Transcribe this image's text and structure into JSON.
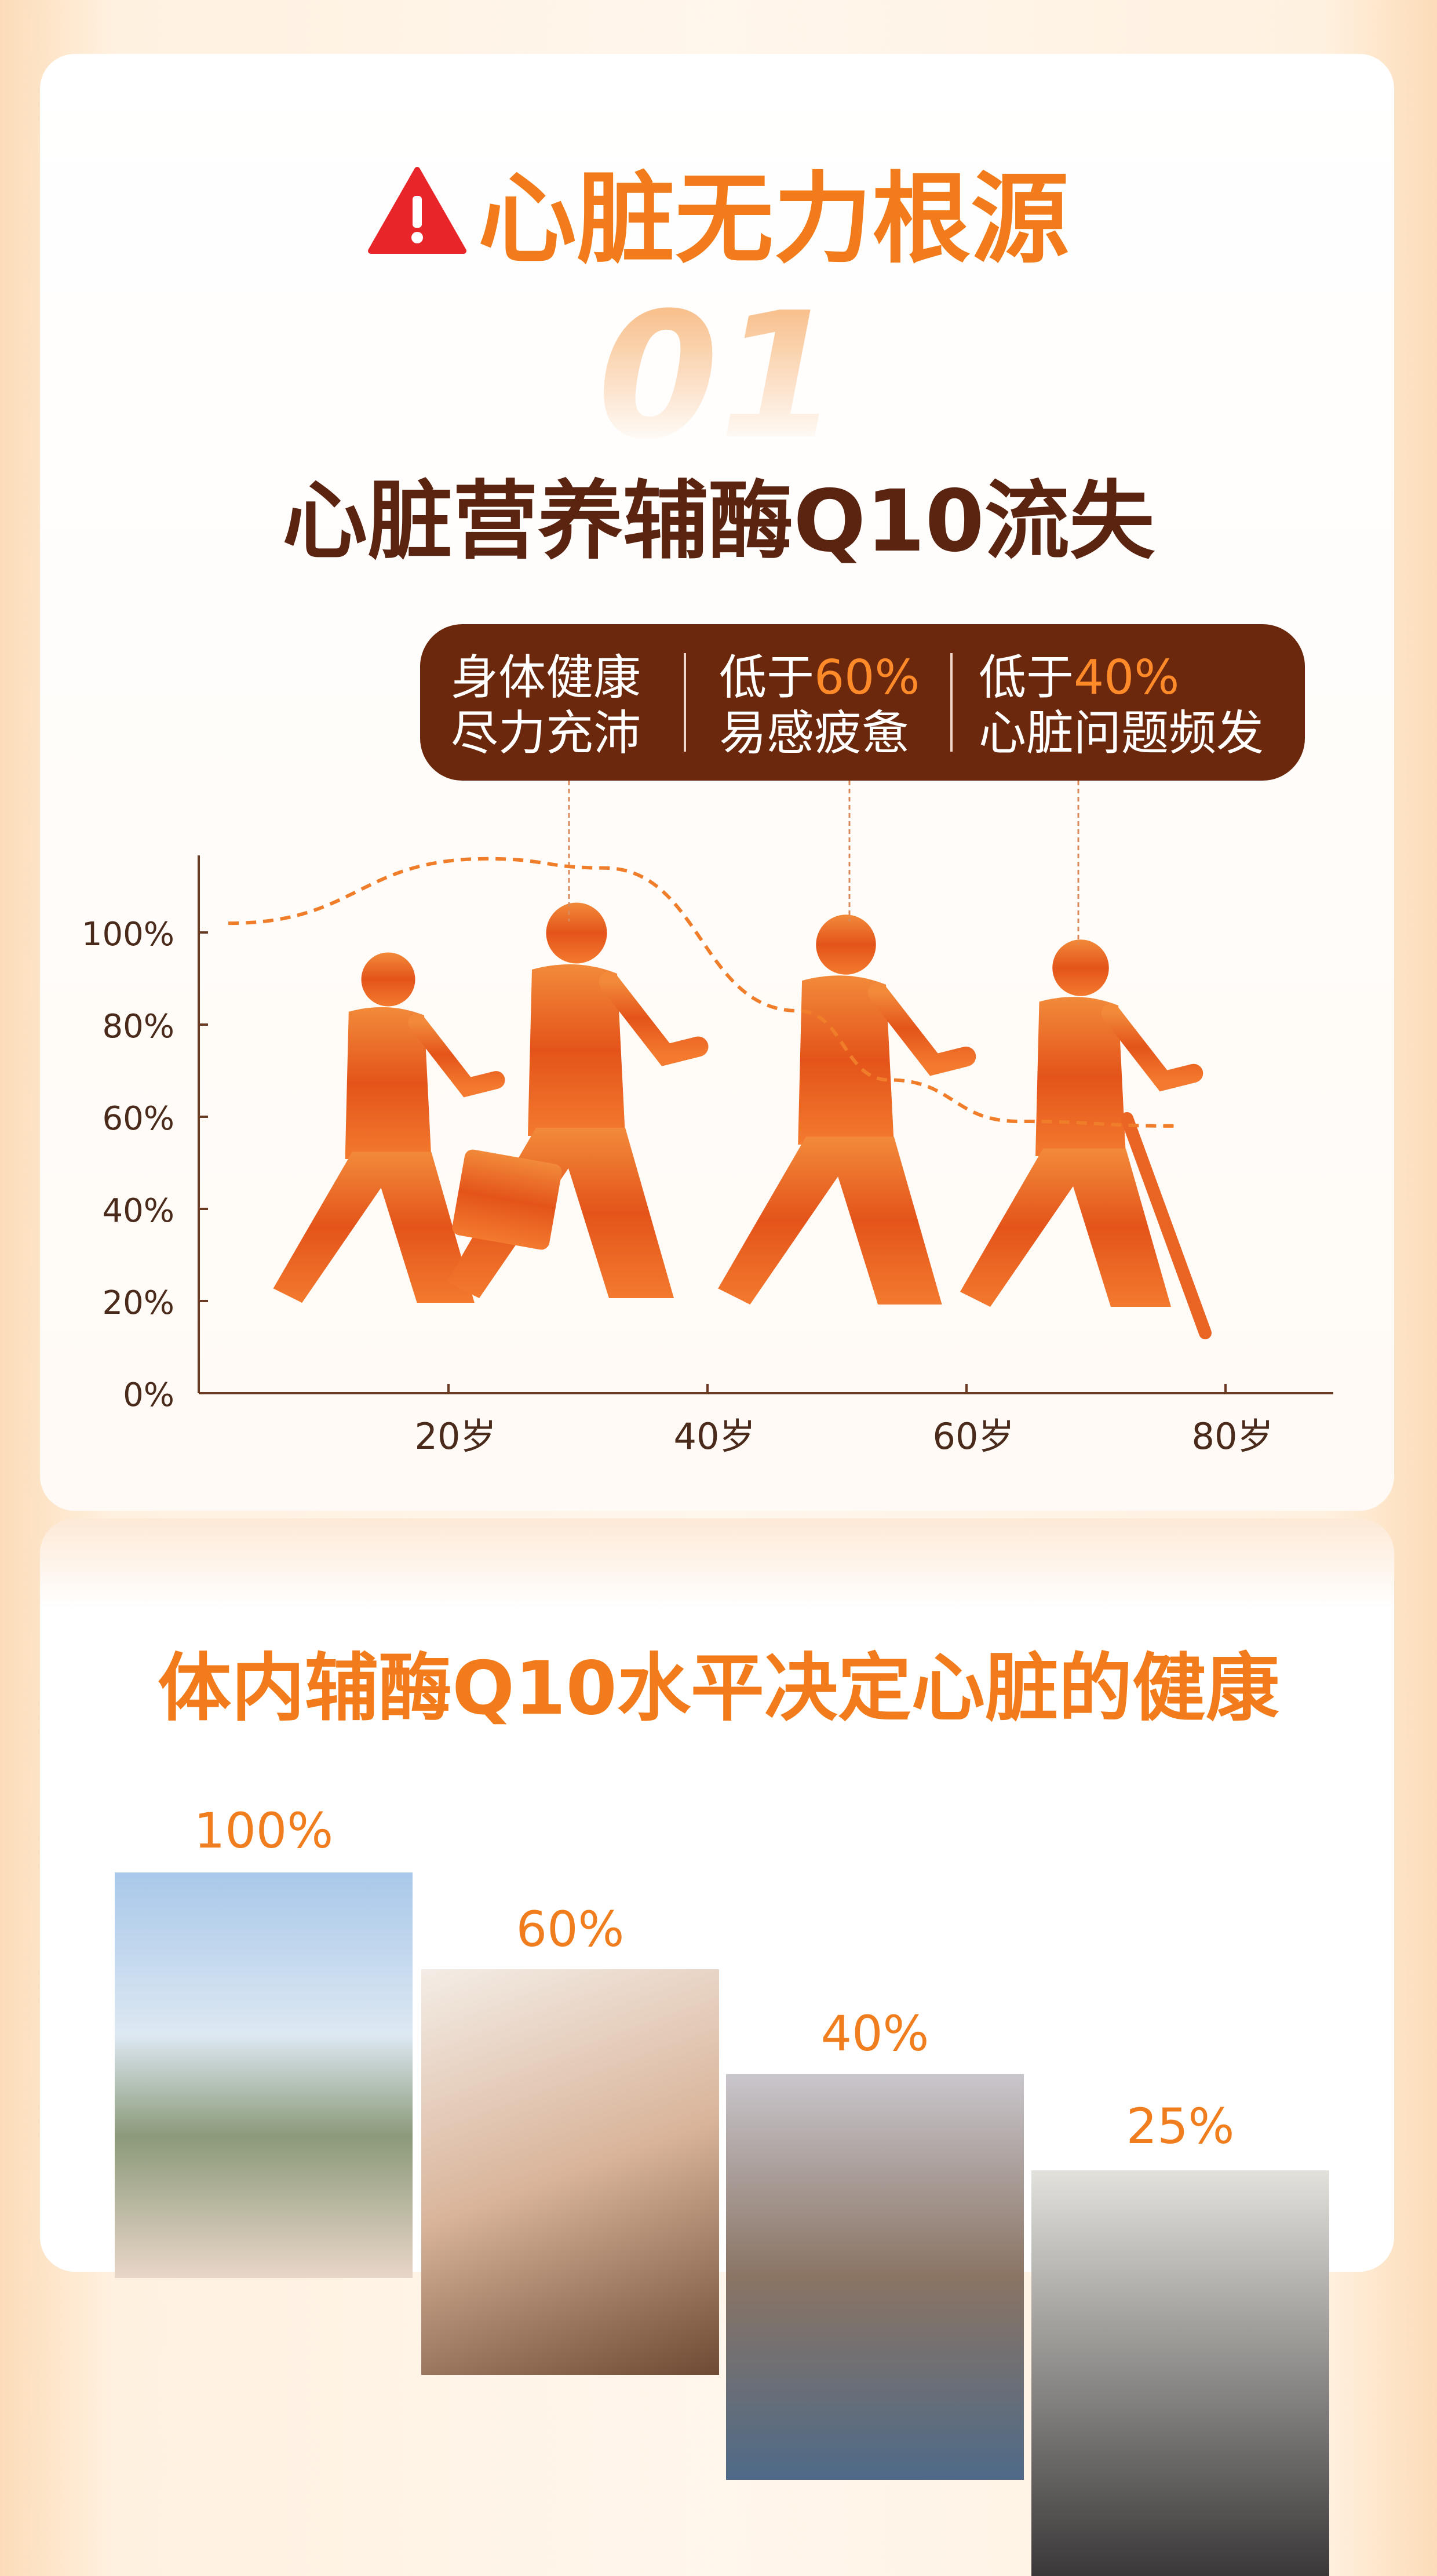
{
  "header": {
    "warning_icon": "warning-triangle-icon",
    "title": "心脏无力根源"
  },
  "section1": {
    "number": "01",
    "subtitle": "心脏营养辅酶Q10流失",
    "callouts": [
      {
        "line1": "身体健康",
        "line2": "尽力充沛"
      },
      {
        "line1_prefix": "低于",
        "line1_highlight": "60%",
        "line2": "易感疲惫"
      },
      {
        "line1_prefix": "低于",
        "line1_highlight": "40%",
        "line2": "心脏问题频发"
      }
    ]
  },
  "chart_data": {
    "type": "line",
    "xlabel": "",
    "ylabel": "",
    "y_ticks": [
      "0%",
      "20%",
      "40%",
      "60%",
      "80%",
      "100%"
    ],
    "x_ticks": [
      "20岁",
      "40岁",
      "60岁",
      "80岁"
    ],
    "ylim": [
      0,
      100
    ],
    "grid": false,
    "series": [
      {
        "style": "dashed",
        "color": "#f07d2a",
        "x": [
          3,
          23,
          32,
          47,
          54,
          64,
          76
        ],
        "y": [
          102,
          116,
          114,
          83,
          68,
          59,
          58
        ]
      }
    ]
  },
  "section2": {
    "title": "体内辅酶Q10水平决定心脏的健康",
    "levels": [
      {
        "value": "100%",
        "photo": "healthy-woman-running-photo"
      },
      {
        "value": "60%",
        "photo": "yawning-tired-woman-photo"
      },
      {
        "value": "40%",
        "photo": "man-in-discomfort-photo"
      },
      {
        "value": "25%",
        "photo": "person-collapsed-photo"
      }
    ]
  },
  "colors": {
    "accent": "#f27c1c",
    "brown": "#6b280c",
    "title_brown": "#5a2410"
  }
}
